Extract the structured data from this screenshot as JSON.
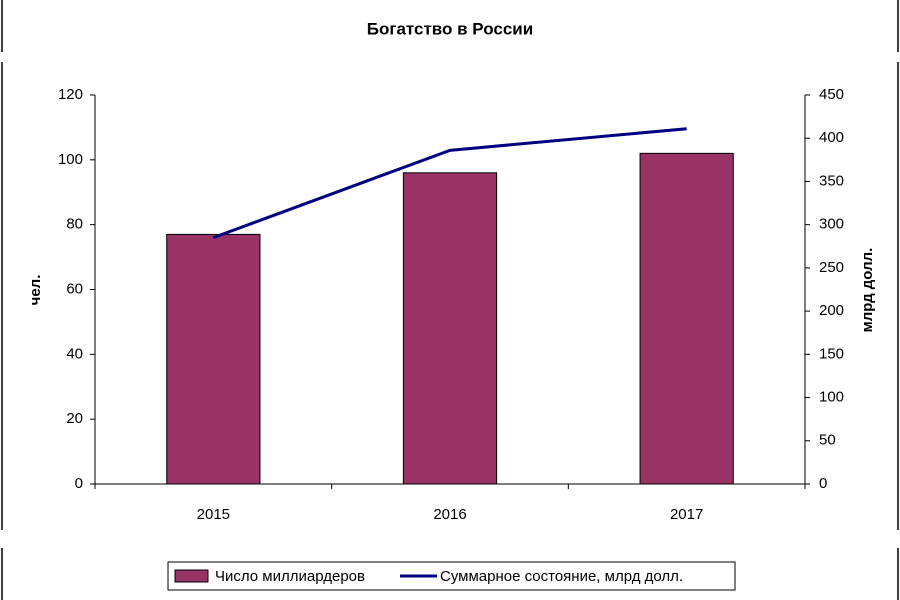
{
  "chart_data": {
    "type": "bar",
    "title": "Богатство в России",
    "categories": [
      "2015",
      "2016",
      "2017"
    ],
    "series": [
      {
        "name": "Число миллиардеров",
        "type": "bar",
        "color": "#993366",
        "values": [
          77,
          96,
          102
        ]
      },
      {
        "name": "Суммарное состояние, млрд долл.",
        "type": "line",
        "axis": "y2",
        "color": "#000080",
        "values": [
          285,
          386,
          411
        ]
      }
    ],
    "ylabel": "чел.",
    "y2label": "млрд долл.",
    "ylim": [
      0,
      120
    ],
    "yticks": [
      0,
      20,
      40,
      60,
      80,
      100,
      120
    ],
    "y2lim": [
      0,
      450
    ],
    "y2ticks": [
      0,
      50,
      100,
      150,
      200,
      250,
      300,
      350,
      400,
      450
    ],
    "legend": "bottom",
    "grid": false
  }
}
